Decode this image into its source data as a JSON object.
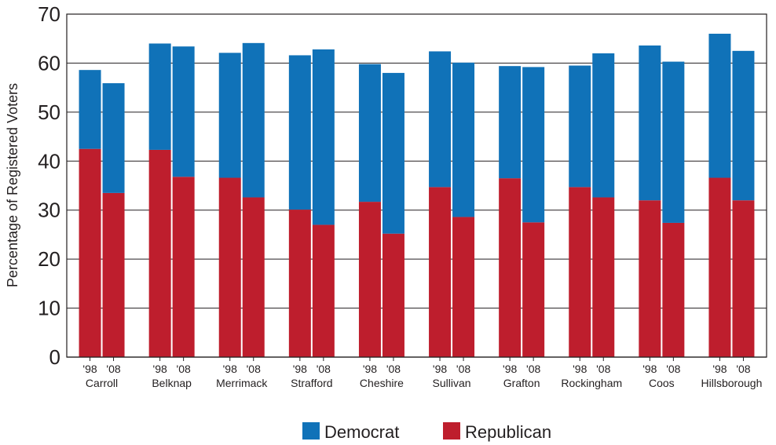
{
  "chart_data": {
    "type": "bar",
    "stacked": true,
    "title": "",
    "xlabel": "",
    "ylabel": "Percentage of Registered Voters",
    "ylim": [
      0,
      70
    ],
    "yticks": [
      0,
      10,
      20,
      30,
      40,
      50,
      60,
      70
    ],
    "grid": true,
    "legend_position": "bottom",
    "counties": [
      "Carroll",
      "Belknap",
      "Merrimack",
      "Strafford",
      "Cheshire",
      "Sullivan",
      "Grafton",
      "Rockingham",
      "Coos",
      "Hillsborough"
    ],
    "years": [
      "'98",
      "'08"
    ],
    "series": [
      {
        "name": "Republican",
        "color": "#be1e2d",
        "values": [
          42.5,
          33.5,
          42.3,
          36.8,
          36.6,
          32.6,
          30.1,
          27.0,
          31.7,
          25.2,
          34.7,
          28.6,
          36.5,
          27.5,
          34.7,
          32.6,
          32.0,
          27.4,
          36.6,
          32.0
        ]
      },
      {
        "name": "Democrat",
        "color": "#1072b8",
        "values": [
          16.1,
          22.4,
          21.7,
          26.6,
          25.5,
          31.5,
          31.5,
          35.8,
          28.1,
          32.8,
          27.7,
          31.5,
          22.9,
          31.7,
          24.8,
          29.4,
          31.6,
          32.9,
          29.4,
          30.5
        ]
      }
    ]
  }
}
